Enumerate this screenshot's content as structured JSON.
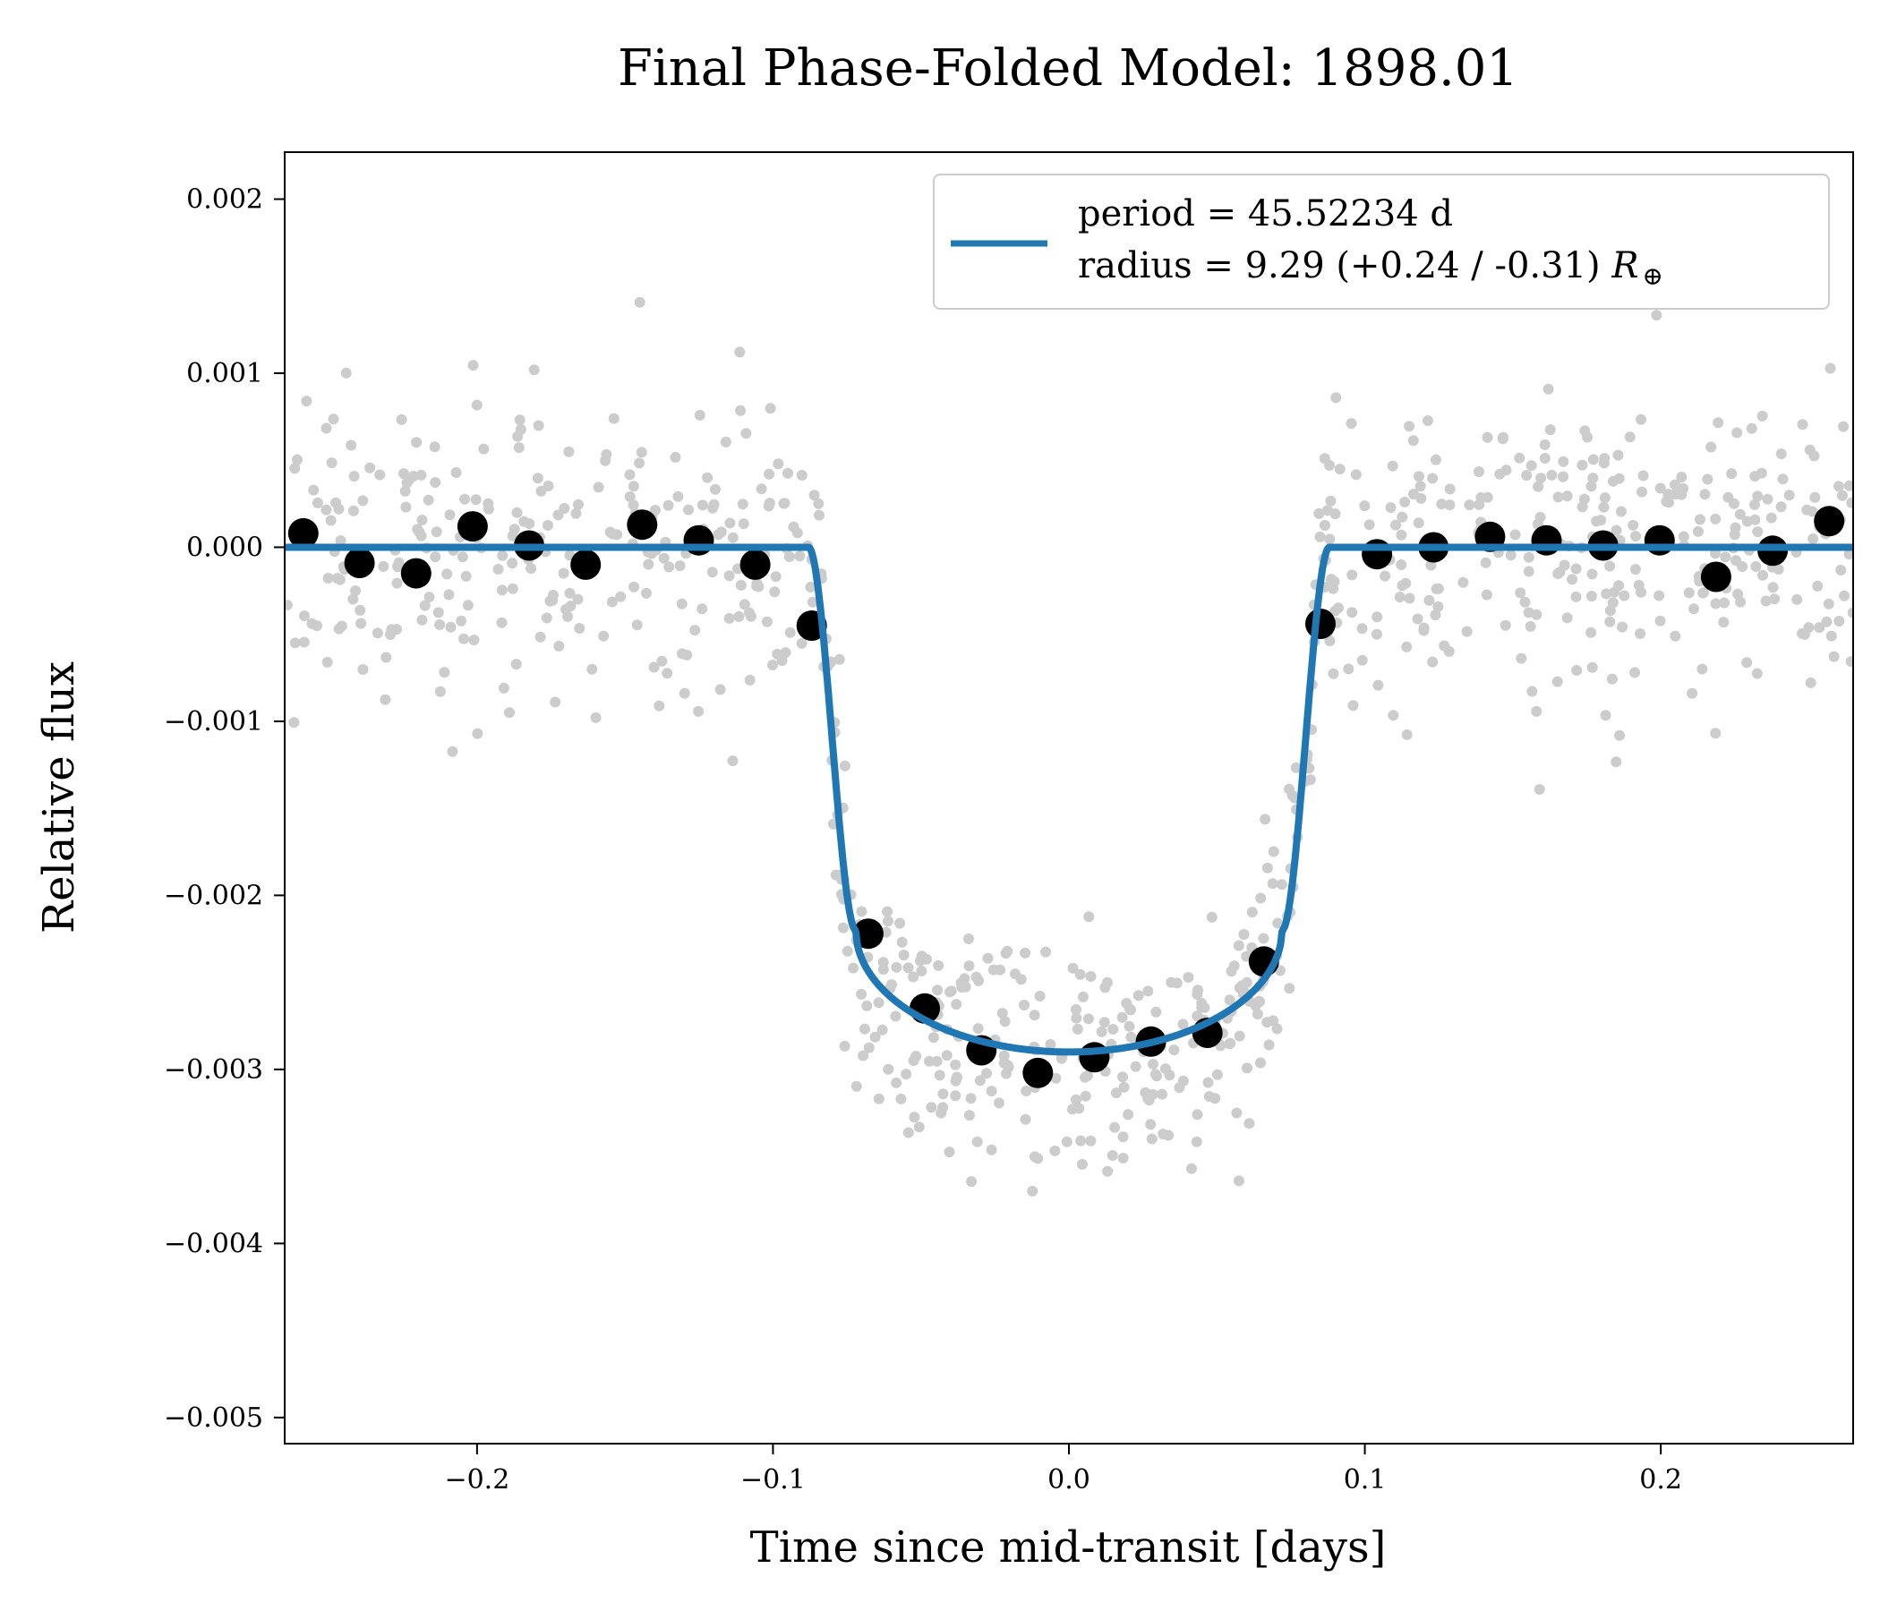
{
  "chart_data": {
    "type": "scatter",
    "title": "Final Phase-Folded Model: 1898.01",
    "xlabel": "Time since mid-transit [days]",
    "ylabel": "Relative flux",
    "xlim": [
      -0.265,
      0.265
    ],
    "ylim": [
      -0.00515,
      0.00227
    ],
    "grid": false,
    "legend_position": "top-right",
    "x_ticks": [
      {
        "value": -0.2,
        "label": "−0.2"
      },
      {
        "value": -0.1,
        "label": "−0.1"
      },
      {
        "value": 0.0,
        "label": "0.0"
      },
      {
        "value": 0.1,
        "label": "0.1"
      },
      {
        "value": 0.2,
        "label": "0.2"
      }
    ],
    "y_ticks": [
      {
        "value": 0.002,
        "label": "0.002"
      },
      {
        "value": 0.001,
        "label": "0.001"
      },
      {
        "value": 0.0,
        "label": "0.000"
      },
      {
        "value": -0.001,
        "label": "−0.001"
      },
      {
        "value": -0.002,
        "label": "−0.002"
      },
      {
        "value": -0.003,
        "label": "−0.003"
      },
      {
        "value": -0.004,
        "label": "−0.004"
      },
      {
        "value": -0.005,
        "label": "−0.005"
      }
    ],
    "legend": {
      "line1": "period = 45.52234 d",
      "line2_prefix": "radius = 9.29 (+0.24 / -0.31) ",
      "line2_symbol": "R",
      "line2_subscript": "⊕"
    },
    "colors": {
      "raw": "#cccccc",
      "binned": "#000000",
      "model": "#1f77b4"
    },
    "transit_model": {
      "depth": 0.0029,
      "t_ingress_start": 0.088,
      "t_ingress_end": 0.072,
      "curvature": 0.0007
    },
    "raw_data_summary": {
      "count": 900,
      "out_of_transit_scatter": 0.00045,
      "in_transit_scatter": 0.00038
    },
    "binned_series": {
      "x": [
        -0.2587,
        -0.2397,
        -0.2206,
        -0.2015,
        -0.1824,
        -0.1633,
        -0.1442,
        -0.1251,
        -0.106,
        -0.0869,
        -0.0678,
        -0.0487,
        -0.0296,
        -0.0105,
        0.0086,
        0.0277,
        0.0468,
        0.0659,
        0.085,
        0.1041,
        0.1232,
        0.1423,
        0.1614,
        0.1805,
        0.1996,
        0.2187,
        0.2378,
        0.2569
      ],
      "y": [
        8e-05,
        -9e-05,
        -0.00015,
        0.00012,
        1e-05,
        -0.0001,
        0.00013,
        4e-05,
        -0.0001,
        -0.00045,
        -0.00222,
        -0.00265,
        -0.00289,
        -0.00302,
        -0.00293,
        -0.00284,
        -0.00279,
        -0.00238,
        -0.00044,
        -4e-05,
        0.0,
        6e-05,
        4e-05,
        1e-05,
        4e-05,
        -0.00017,
        -2e-05,
        0.00015
      ]
    }
  }
}
